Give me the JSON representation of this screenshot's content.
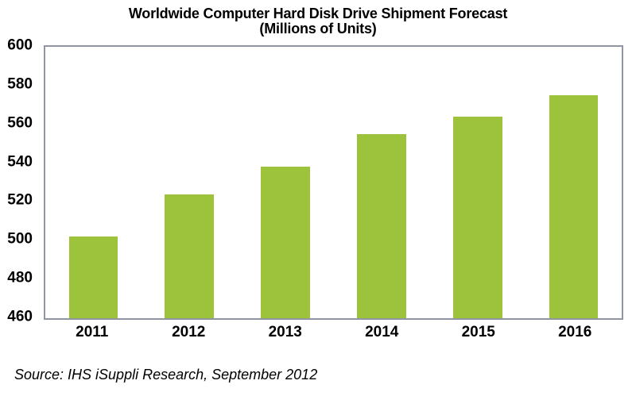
{
  "chart": {
    "title_line1": "Worldwide Computer Hard Disk Drive Shipment Forecast",
    "title_line2": "(Millions of Units)",
    "source": "Source: IHS iSuppli Research, September 2012"
  },
  "chart_data": {
    "type": "bar",
    "title": "Worldwide Computer Hard Disk Drive Shipment Forecast",
    "subtitle": "(Millions of Units)",
    "categories": [
      "2011",
      "2012",
      "2013",
      "2014",
      "2015",
      "2016"
    ],
    "values": [
      502,
      524,
      538,
      555,
      564,
      575
    ],
    "xlabel": "",
    "ylabel": "",
    "ylim": [
      460,
      600
    ],
    "yticks": [
      460,
      480,
      500,
      520,
      540,
      560,
      580,
      600
    ],
    "grid": false,
    "legend": false,
    "bar_color": "#9cc33b",
    "plot_border_color": "#8f96a1",
    "source": "Source: IHS iSuppli Research, September 2012"
  }
}
